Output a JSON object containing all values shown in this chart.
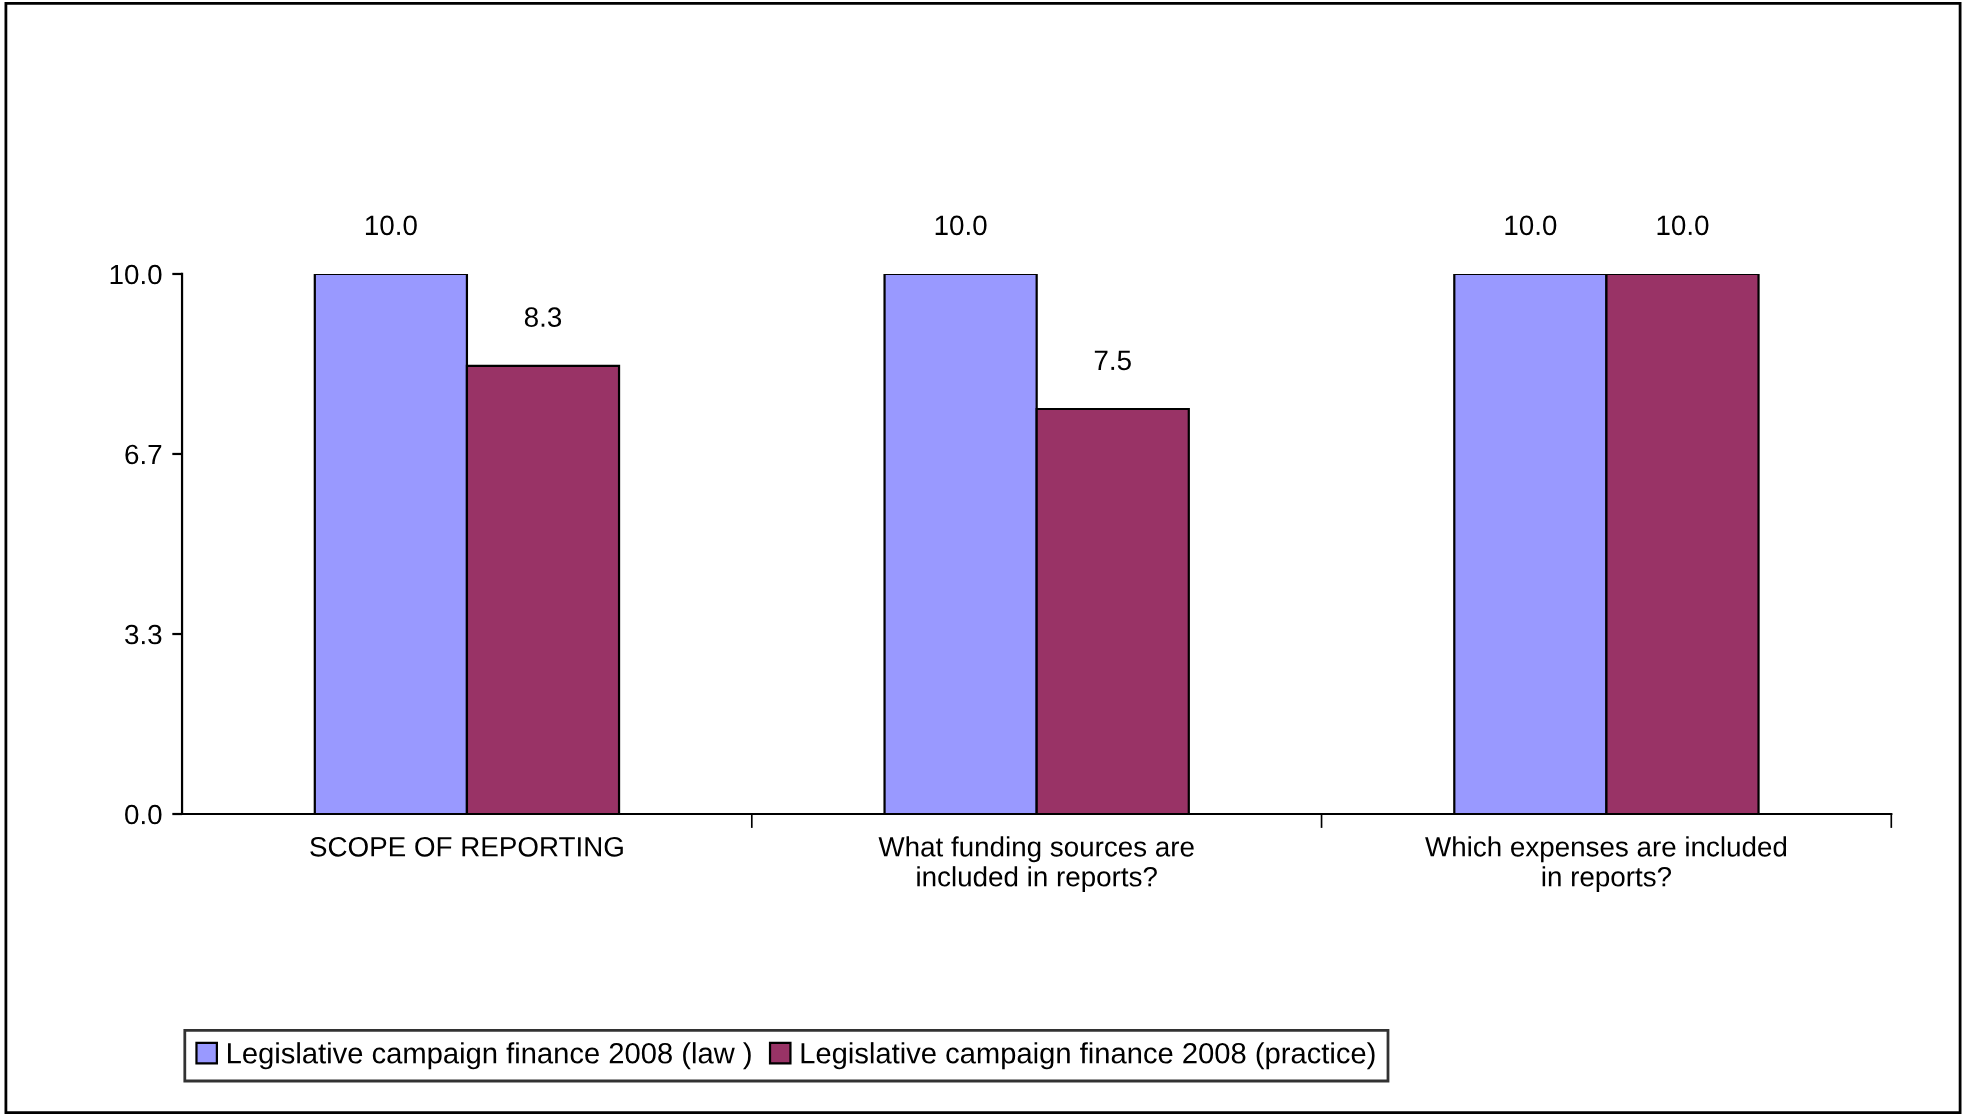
{
  "chart_data": {
    "type": "bar",
    "categories": [
      "SCOPE OF REPORTING",
      "What funding sources are included in reports?",
      "Which expenses are included in reports?"
    ],
    "series": [
      {
        "name": "Legislative campaign finance 2008 (law )",
        "color": "#9999ff",
        "values": [
          10.0,
          10.0,
          10.0
        ],
        "value_labels": [
          "10.0",
          "10.0",
          "10.0"
        ]
      },
      {
        "name": "Legislative campaign finance 2008 (practice)",
        "color": "#993366",
        "values": [
          8.3,
          7.5,
          10.0
        ],
        "value_labels": [
          "8.3",
          "7.5",
          "10.0"
        ]
      }
    ],
    "ylim": [
      0,
      10
    ],
    "yticks": [
      {
        "value": 0,
        "label": "0.0"
      },
      {
        "value": 3.333,
        "label": "3.3"
      },
      {
        "value": 6.667,
        "label": "6.7"
      },
      {
        "value": 10,
        "label": "10.0"
      }
    ],
    "grid": false,
    "legend": "bottom"
  }
}
